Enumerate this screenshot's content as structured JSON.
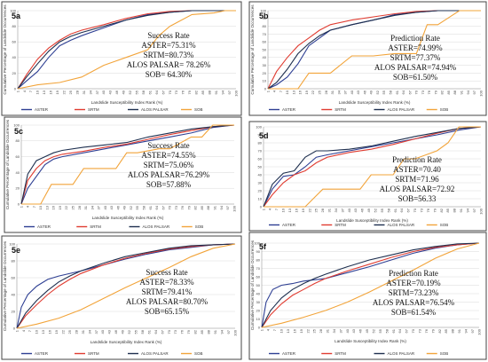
{
  "chart_data": [
    {
      "type": "line",
      "panel": "5a",
      "stats_title": "Success Rate",
      "stats": [
        "ASTER=75.31%",
        "SRTM=80.73%",
        "ALOS PALSAR= 78.26%",
        "SOB= 64.30%"
      ],
      "xlabel": "Landslide Susceptibility Index Rank (%)",
      "ylabel": "Cumulative Percentage of Landslide Occurrences",
      "xlim": [
        1,
        100
      ],
      "ylim": [
        0,
        100
      ],
      "x_ticks": [
        "1",
        "4",
        "7",
        "10",
        "13",
        "16",
        "19",
        "22",
        "25",
        "28",
        "31",
        "34",
        "37",
        "40",
        "43",
        "46",
        "49",
        "52",
        "55",
        "58",
        "61",
        "64",
        "67",
        "70",
        "73",
        "76",
        "79",
        "82",
        "85",
        "88",
        "91",
        "94",
        "97",
        "100"
      ],
      "y_ticks": [
        "0",
        "20",
        "40",
        "60",
        "80",
        "100"
      ],
      "series": [
        {
          "name": "ASTER",
          "x": [
            1,
            5,
            10,
            15,
            20,
            25,
            30,
            40,
            50,
            60,
            70,
            80,
            90,
            100
          ],
          "y": [
            0,
            10,
            22,
            40,
            55,
            62,
            68,
            78,
            88,
            95,
            98,
            100,
            100,
            100
          ]
        },
        {
          "name": "SRTM",
          "x": [
            1,
            5,
            10,
            15,
            20,
            25,
            30,
            40,
            50,
            60,
            70,
            80,
            90,
            100
          ],
          "y": [
            0,
            18,
            38,
            52,
            62,
            70,
            75,
            82,
            90,
            96,
            99,
            100,
            100,
            100
          ]
        },
        {
          "name": "ALOS PALSAR",
          "x": [
            1,
            5,
            10,
            15,
            20,
            25,
            30,
            40,
            50,
            60,
            70,
            80,
            90,
            100
          ],
          "y": [
            0,
            15,
            32,
            48,
            60,
            67,
            72,
            80,
            88,
            94,
            98,
            100,
            100,
            100
          ]
        },
        {
          "name": "SOB",
          "x": [
            1,
            10,
            20,
            30,
            40,
            50,
            60,
            65,
            70,
            80,
            90,
            95,
            100
          ],
          "y": [
            0,
            5,
            8,
            15,
            30,
            40,
            50,
            68,
            80,
            95,
            97,
            100,
            100
          ]
        }
      ]
    },
    {
      "type": "line",
      "panel": "5b",
      "stats_title": "Prediction Rate",
      "stats": [
        "ASTER=74.99%",
        "SRTM=77.37%",
        "ALOS PALSAR=74.94%",
        "SOB=61.50%"
      ],
      "xlabel": "Landslide Susceptibility Index Rank (%)",
      "ylabel": "Cumulative Percentage of Landslide Occurrences",
      "xlim": [
        1,
        100
      ],
      "ylim": [
        0,
        100
      ],
      "x_ticks": [
        "1",
        "4",
        "7",
        "10",
        "13",
        "16",
        "19",
        "22",
        "25",
        "28",
        "31",
        "34",
        "37",
        "40",
        "43",
        "46",
        "49",
        "52",
        "55",
        "58",
        "61",
        "64",
        "67",
        "70",
        "73",
        "76",
        "79",
        "82",
        "85",
        "88",
        "91",
        "94",
        "97",
        "100"
      ],
      "y_ticks": [
        "0",
        "10",
        "20",
        "30",
        "40",
        "50",
        "60",
        "70",
        "80",
        "90",
        "100"
      ],
      "series": [
        {
          "name": "ASTER",
          "x": [
            1,
            5,
            10,
            15,
            20,
            25,
            30,
            40,
            50,
            60,
            70,
            80,
            90,
            100
          ],
          "y": [
            0,
            5,
            15,
            32,
            55,
            65,
            75,
            82,
            88,
            95,
            98,
            100,
            100,
            100
          ]
        },
        {
          "name": "SRTM",
          "x": [
            1,
            5,
            10,
            15,
            20,
            25,
            30,
            40,
            50,
            60,
            70,
            80,
            90,
            100
          ],
          "y": [
            0,
            22,
            40,
            55,
            65,
            75,
            82,
            88,
            92,
            96,
            99,
            100,
            100,
            100
          ]
        },
        {
          "name": "ALOS PALSAR",
          "x": [
            1,
            5,
            10,
            15,
            20,
            25,
            30,
            40,
            50,
            60,
            70,
            80,
            90,
            100
          ],
          "y": [
            0,
            8,
            25,
            45,
            58,
            68,
            75,
            82,
            88,
            94,
            98,
            100,
            100,
            100
          ]
        },
        {
          "name": "SOB",
          "x": [
            1,
            15,
            20,
            30,
            40,
            50,
            60,
            70,
            75,
            80,
            90,
            100
          ],
          "y": [
            0,
            0,
            20,
            20,
            42,
            42,
            45,
            45,
            82,
            82,
            100,
            100
          ]
        }
      ]
    },
    {
      "type": "line",
      "panel": "5c",
      "stats_title": "Success Rate",
      "stats": [
        "ASTER=74.55%",
        "SRTM=75.06%",
        "ALOS PALSAR=76.29%",
        "SOB=57.88%"
      ],
      "xlabel": "Landslide Susceptibility Index Rank (%)",
      "ylabel": "Cumulative Percentage of Landslide Occurrences",
      "xlim": [
        1,
        100
      ],
      "ylim": [
        0,
        100
      ],
      "x_ticks": [
        "1",
        "4",
        "7",
        "10",
        "13",
        "16",
        "19",
        "22",
        "25",
        "28",
        "31",
        "34",
        "37",
        "40",
        "43",
        "46",
        "49",
        "52",
        "55",
        "58",
        "61",
        "64",
        "67",
        "70",
        "73",
        "76",
        "79",
        "82",
        "85",
        "88",
        "91",
        "94",
        "97",
        "100"
      ],
      "y_ticks": [
        "0",
        "20",
        "40",
        "60",
        "80",
        "100"
      ],
      "series": [
        {
          "name": "ASTER",
          "x": [
            1,
            4,
            8,
            12,
            16,
            20,
            30,
            40,
            50,
            60,
            70,
            80,
            90,
            100
          ],
          "y": [
            0,
            20,
            35,
            50,
            57,
            60,
            65,
            70,
            75,
            80,
            85,
            90,
            97,
            100
          ]
        },
        {
          "name": "SRTM",
          "x": [
            1,
            4,
            8,
            12,
            16,
            20,
            30,
            40,
            50,
            60,
            70,
            80,
            90,
            100
          ],
          "y": [
            0,
            30,
            45,
            55,
            60,
            63,
            67,
            72,
            76,
            82,
            88,
            93,
            98,
            100
          ]
        },
        {
          "name": "ALOS PALSAR",
          "x": [
            1,
            4,
            8,
            12,
            16,
            20,
            30,
            40,
            50,
            60,
            70,
            80,
            90,
            100
          ],
          "y": [
            0,
            38,
            55,
            60,
            65,
            68,
            72,
            75,
            78,
            85,
            90,
            95,
            98,
            100
          ]
        },
        {
          "name": "SOB",
          "x": [
            1,
            10,
            15,
            25,
            30,
            45,
            50,
            55,
            65,
            70,
            80,
            85,
            90,
            100
          ],
          "y": [
            0,
            0,
            25,
            25,
            45,
            45,
            65,
            65,
            70,
            70,
            85,
            85,
            100,
            100
          ]
        }
      ]
    },
    {
      "type": "line",
      "panel": "5d",
      "stats_title": "Prediction Rate",
      "stats": [
        "ASTER=70.40",
        "SRTM=71.96",
        "ALOS PALSAR=72.92",
        "SOB=56.33"
      ],
      "xlabel": "Landslide Susceptibility Index Rank (%)",
      "ylabel": "",
      "xlim": [
        1,
        100
      ],
      "ylim": [
        0,
        100
      ],
      "x_ticks": [
        "1",
        "4",
        "7",
        "10",
        "13",
        "16",
        "19",
        "22",
        "25",
        "28",
        "31",
        "34",
        "37",
        "40",
        "43",
        "46",
        "49",
        "52",
        "55",
        "58",
        "61",
        "64",
        "67",
        "70",
        "73",
        "76",
        "79",
        "82",
        "85",
        "88",
        "91",
        "94",
        "97",
        "100"
      ],
      "y_ticks": [
        "0",
        "10",
        "20",
        "30",
        "40",
        "50",
        "60",
        "70",
        "80",
        "90",
        "100"
      ],
      "series": [
        {
          "name": "ASTER",
          "x": [
            1,
            5,
            10,
            15,
            20,
            25,
            30,
            40,
            50,
            60,
            70,
            80,
            90,
            100
          ],
          "y": [
            0,
            22,
            38,
            40,
            50,
            62,
            65,
            70,
            75,
            80,
            85,
            90,
            96,
            100
          ]
        },
        {
          "name": "SRTM",
          "x": [
            1,
            5,
            10,
            15,
            20,
            25,
            30,
            40,
            50,
            60,
            70,
            80,
            90,
            100
          ],
          "y": [
            0,
            15,
            30,
            40,
            45,
            55,
            62,
            68,
            72,
            78,
            85,
            92,
            98,
            100
          ]
        },
        {
          "name": "ALOS PALSAR",
          "x": [
            1,
            5,
            10,
            15,
            20,
            25,
            30,
            40,
            50,
            60,
            70,
            80,
            90,
            100
          ],
          "y": [
            0,
            28,
            42,
            45,
            62,
            70,
            70,
            72,
            76,
            82,
            88,
            93,
            98,
            100
          ]
        },
        {
          "name": "SOB",
          "x": [
            1,
            20,
            28,
            35,
            45,
            50,
            60,
            65,
            70,
            80,
            85,
            90,
            100
          ],
          "y": [
            0,
            0,
            22,
            22,
            22,
            40,
            40,
            60,
            60,
            70,
            80,
            100,
            100
          ]
        }
      ]
    },
    {
      "type": "line",
      "panel": "5e",
      "stats_title": "Success Rate",
      "stats": [
        "ASTER=78.33%",
        "SRTM=79.41%",
        "ALOS PALSAR=80.70%",
        "SOB=65.15%"
      ],
      "xlabel": "Landslide Susceptibility Index Rank (%)",
      "ylabel": "Cumulative Percentage of Landslide Occurrences",
      "xlim": [
        1,
        100
      ],
      "ylim": [
        0,
        100
      ],
      "x_ticks": [
        "1",
        "4",
        "7",
        "10",
        "13",
        "16",
        "19",
        "22",
        "25",
        "28",
        "31",
        "34",
        "37",
        "40",
        "43",
        "46",
        "49",
        "52",
        "55",
        "58",
        "61",
        "64",
        "67",
        "70",
        "73",
        "76",
        "79",
        "82",
        "85",
        "88",
        "91",
        "94",
        "97",
        "100"
      ],
      "y_ticks": [
        "0",
        "20",
        "40",
        "60",
        "80",
        "100"
      ],
      "series": [
        {
          "name": "ASTER",
          "x": [
            1,
            3,
            6,
            10,
            15,
            20,
            30,
            40,
            50,
            60,
            70,
            80,
            90,
            100
          ],
          "y": [
            0,
            25,
            40,
            50,
            58,
            62,
            68,
            75,
            82,
            88,
            93,
            96,
            99,
            100
          ]
        },
        {
          "name": "SRTM",
          "x": [
            1,
            5,
            10,
            15,
            20,
            25,
            30,
            40,
            50,
            60,
            70,
            80,
            90,
            100
          ],
          "y": [
            0,
            15,
            28,
            40,
            50,
            58,
            65,
            75,
            83,
            89,
            94,
            97,
            99,
            100
          ]
        },
        {
          "name": "ALOS PALSAR",
          "x": [
            1,
            5,
            10,
            15,
            20,
            25,
            30,
            40,
            50,
            60,
            70,
            80,
            90,
            100
          ],
          "y": [
            0,
            18,
            33,
            45,
            55,
            62,
            68,
            77,
            85,
            90,
            95,
            98,
            99,
            100
          ]
        },
        {
          "name": "SOB",
          "x": [
            1,
            10,
            20,
            30,
            40,
            50,
            60,
            70,
            80,
            90,
            100
          ],
          "y": [
            0,
            5,
            12,
            22,
            35,
            48,
            60,
            72,
            85,
            95,
            100
          ]
        }
      ]
    },
    {
      "type": "line",
      "panel": "5f",
      "stats_title": "Prediction Rate",
      "stats": [
        "ASTER=70.19%",
        "SRTM=73.23%",
        "ALOS PALSAR=76.54%",
        "SOB=61.54%"
      ],
      "xlabel": "Landslide Susceptibility Index Rank (%)",
      "ylabel": "Cumulative Percentage of Landslide Occurrences",
      "xlim": [
        1,
        100
      ],
      "ylim": [
        0,
        100
      ],
      "x_ticks": [
        "1",
        "4",
        "7",
        "10",
        "13",
        "16",
        "19",
        "22",
        "25",
        "28",
        "31",
        "34",
        "37",
        "40",
        "43",
        "46",
        "49",
        "52",
        "55",
        "58",
        "61",
        "64",
        "67",
        "70",
        "73",
        "76",
        "79",
        "82",
        "85",
        "88",
        "91",
        "94",
        "97",
        "100"
      ],
      "y_ticks": [
        "0",
        "10",
        "20",
        "30",
        "40",
        "50",
        "60",
        "70",
        "80",
        "90",
        "100"
      ],
      "series": [
        {
          "name": "ASTER",
          "x": [
            1,
            3,
            6,
            10,
            15,
            20,
            30,
            40,
            50,
            60,
            70,
            80,
            90,
            100
          ],
          "y": [
            0,
            30,
            45,
            50,
            52,
            55,
            58,
            65,
            72,
            80,
            88,
            94,
            98,
            100
          ]
        },
        {
          "name": "SRTM",
          "x": [
            1,
            5,
            10,
            15,
            20,
            25,
            30,
            40,
            50,
            60,
            70,
            80,
            90,
            100
          ],
          "y": [
            0,
            15,
            28,
            38,
            45,
            52,
            58,
            67,
            75,
            83,
            90,
            95,
            98,
            100
          ]
        },
        {
          "name": "ALOS PALSAR",
          "x": [
            1,
            5,
            10,
            15,
            20,
            25,
            30,
            40,
            50,
            60,
            70,
            80,
            90,
            100
          ],
          "y": [
            0,
            20,
            35,
            45,
            52,
            58,
            63,
            72,
            80,
            86,
            92,
            96,
            99,
            100
          ]
        },
        {
          "name": "SOB",
          "x": [
            1,
            10,
            20,
            30,
            40,
            50,
            60,
            70,
            80,
            90,
            100
          ],
          "y": [
            0,
            5,
            12,
            20,
            30,
            42,
            55,
            68,
            82,
            93,
            100
          ]
        }
      ]
    }
  ],
  "series_colors": {
    "ASTER": "#2e3f93",
    "SRTM": "#e03c31",
    "ALOS PALSAR": "#1e2f4f",
    "SOB": "#f2a43a"
  },
  "legend": [
    "ASTER",
    "SRTM",
    "ALOS PALSAR",
    "SOB"
  ]
}
